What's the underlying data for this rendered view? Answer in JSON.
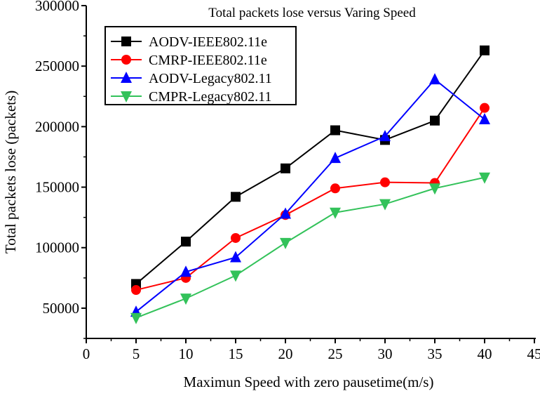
{
  "chart_data": {
    "type": "line",
    "title": "Total packets lose versus Varing Speed",
    "xlabel": "Maximun Speed with zero pausetime(m/s)",
    "ylabel": "Total packets lose (packets)",
    "xlim": [
      0,
      45
    ],
    "ylim": [
      25000,
      300000
    ],
    "xticks": [
      0,
      5,
      10,
      15,
      20,
      25,
      30,
      35,
      40,
      45
    ],
    "yticks": [
      50000,
      100000,
      150000,
      200000,
      250000,
      300000
    ],
    "grid": false,
    "legend_position": "top-left",
    "x": [
      5,
      10,
      15,
      20,
      25,
      30,
      35,
      40
    ],
    "series": [
      {
        "name": "AODV-IEEE802.11e",
        "color": "#000000",
        "marker": "square",
        "values": [
          70000,
          105000,
          142000,
          165500,
          197000,
          189000,
          205000,
          263000
        ]
      },
      {
        "name": "CMRP-IEEE802.11e",
        "color": "#ff0000",
        "marker": "circle",
        "values": [
          65000,
          75000,
          108000,
          127000,
          149000,
          154000,
          153500,
          215500
        ]
      },
      {
        "name": "AODV-Legacy802.11",
        "color": "#0000ff",
        "marker": "triangle-up",
        "values": [
          47000,
          80000,
          92000,
          128000,
          174000,
          192000,
          239000,
          206000
        ]
      },
      {
        "name": "CMPR-Legacy802.11",
        "color": "#33c25a",
        "marker": "triangle-down",
        "values": [
          42000,
          58000,
          77000,
          104000,
          129000,
          136000,
          149000,
          158000
        ]
      }
    ]
  }
}
